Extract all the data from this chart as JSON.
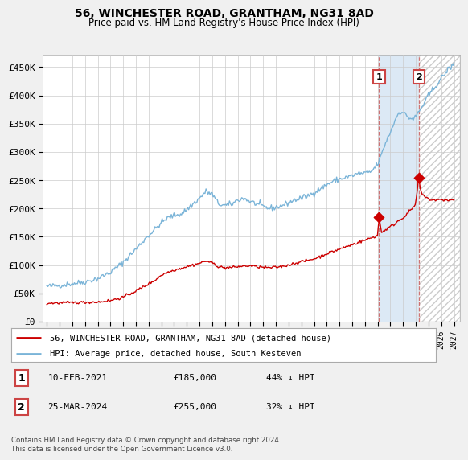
{
  "title": "56, WINCHESTER ROAD, GRANTHAM, NG31 8AD",
  "subtitle": "Price paid vs. HM Land Registry's House Price Index (HPI)",
  "ylim": [
    0,
    470000
  ],
  "yticks": [
    0,
    50000,
    100000,
    150000,
    200000,
    250000,
    300000,
    350000,
    400000,
    450000
  ],
  "ytick_labels": [
    "£0",
    "£50K",
    "£100K",
    "£150K",
    "£200K",
    "£250K",
    "£300K",
    "£350K",
    "£400K",
    "£450K"
  ],
  "hpi_color": "#7ab4d8",
  "price_color": "#cc0000",
  "dashed_color": "#cc6666",
  "shaded_color": "#dce9f5",
  "hatched_color": "#e8e8e8",
  "legend_label_price": "56, WINCHESTER ROAD, GRANTHAM, NG31 8AD (detached house)",
  "legend_label_hpi": "HPI: Average price, detached house, South Kesteven",
  "annotation1_date": "10-FEB-2021",
  "annotation1_price": "£185,000",
  "annotation1_pct": "44% ↓ HPI",
  "annotation2_date": "25-MAR-2024",
  "annotation2_price": "£255,000",
  "annotation2_pct": "32% ↓ HPI",
  "footer": "Contains HM Land Registry data © Crown copyright and database right 2024.\nThis data is licensed under the Open Government Licence v3.0.",
  "background_color": "#f0f0f0",
  "plot_bg_color": "#ffffff",
  "sale1_year": 2021.11,
  "sale1_price": 185000,
  "sale2_year": 2024.23,
  "sale2_price": 255000,
  "shade_start": 2021.11,
  "shade_end": 2024.23,
  "hatch_start": 2024.23,
  "hatch_end": 2027.5,
  "xmin": 1994.7,
  "xmax": 2027.5
}
